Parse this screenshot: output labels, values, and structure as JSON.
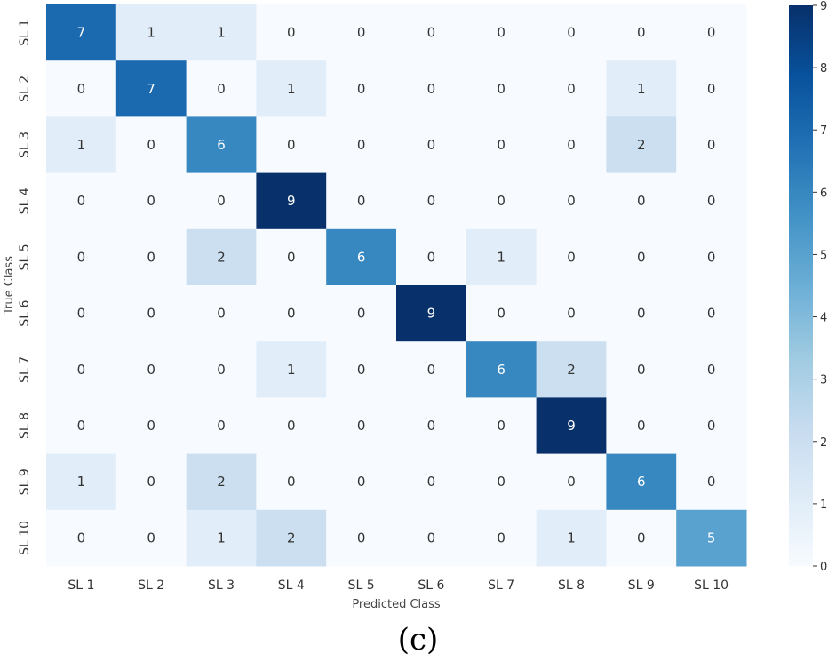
{
  "chart_data": {
    "type": "heatmap",
    "title": "",
    "xlabel": "Predicted Class",
    "ylabel": "True Class",
    "x_categories": [
      "SL 1",
      "SL 2",
      "SL 3",
      "SL 4",
      "SL 5",
      "SL 6",
      "SL 7",
      "SL 8",
      "SL 9",
      "SL 10"
    ],
    "y_categories": [
      "SL 1",
      "SL 2",
      "SL 3",
      "SL 4",
      "SL 5",
      "SL 6",
      "SL 7",
      "SL 8",
      "SL 9",
      "SL 10"
    ],
    "values": [
      [
        7,
        1,
        1,
        0,
        0,
        0,
        0,
        0,
        0,
        0
      ],
      [
        0,
        7,
        0,
        1,
        0,
        0,
        0,
        0,
        1,
        0
      ],
      [
        1,
        0,
        6,
        0,
        0,
        0,
        0,
        0,
        2,
        0
      ],
      [
        0,
        0,
        0,
        9,
        0,
        0,
        0,
        0,
        0,
        0
      ],
      [
        0,
        0,
        2,
        0,
        6,
        0,
        1,
        0,
        0,
        0
      ],
      [
        0,
        0,
        0,
        0,
        0,
        9,
        0,
        0,
        0,
        0
      ],
      [
        0,
        0,
        0,
        1,
        0,
        0,
        6,
        2,
        0,
        0
      ],
      [
        0,
        0,
        0,
        0,
        0,
        0,
        0,
        9,
        0,
        0
      ],
      [
        1,
        0,
        2,
        0,
        0,
        0,
        0,
        0,
        6,
        0
      ],
      [
        0,
        0,
        1,
        2,
        0,
        0,
        0,
        1,
        0,
        5
      ]
    ],
    "colorbar": {
      "min": 0,
      "max": 9,
      "ticks": [
        0,
        1,
        2,
        3,
        4,
        5,
        6,
        7,
        8,
        9
      ]
    },
    "colormap": "Blues",
    "colors": {
      "low": "#f7fbff",
      "high": "#08306b"
    }
  },
  "caption": "(c)"
}
